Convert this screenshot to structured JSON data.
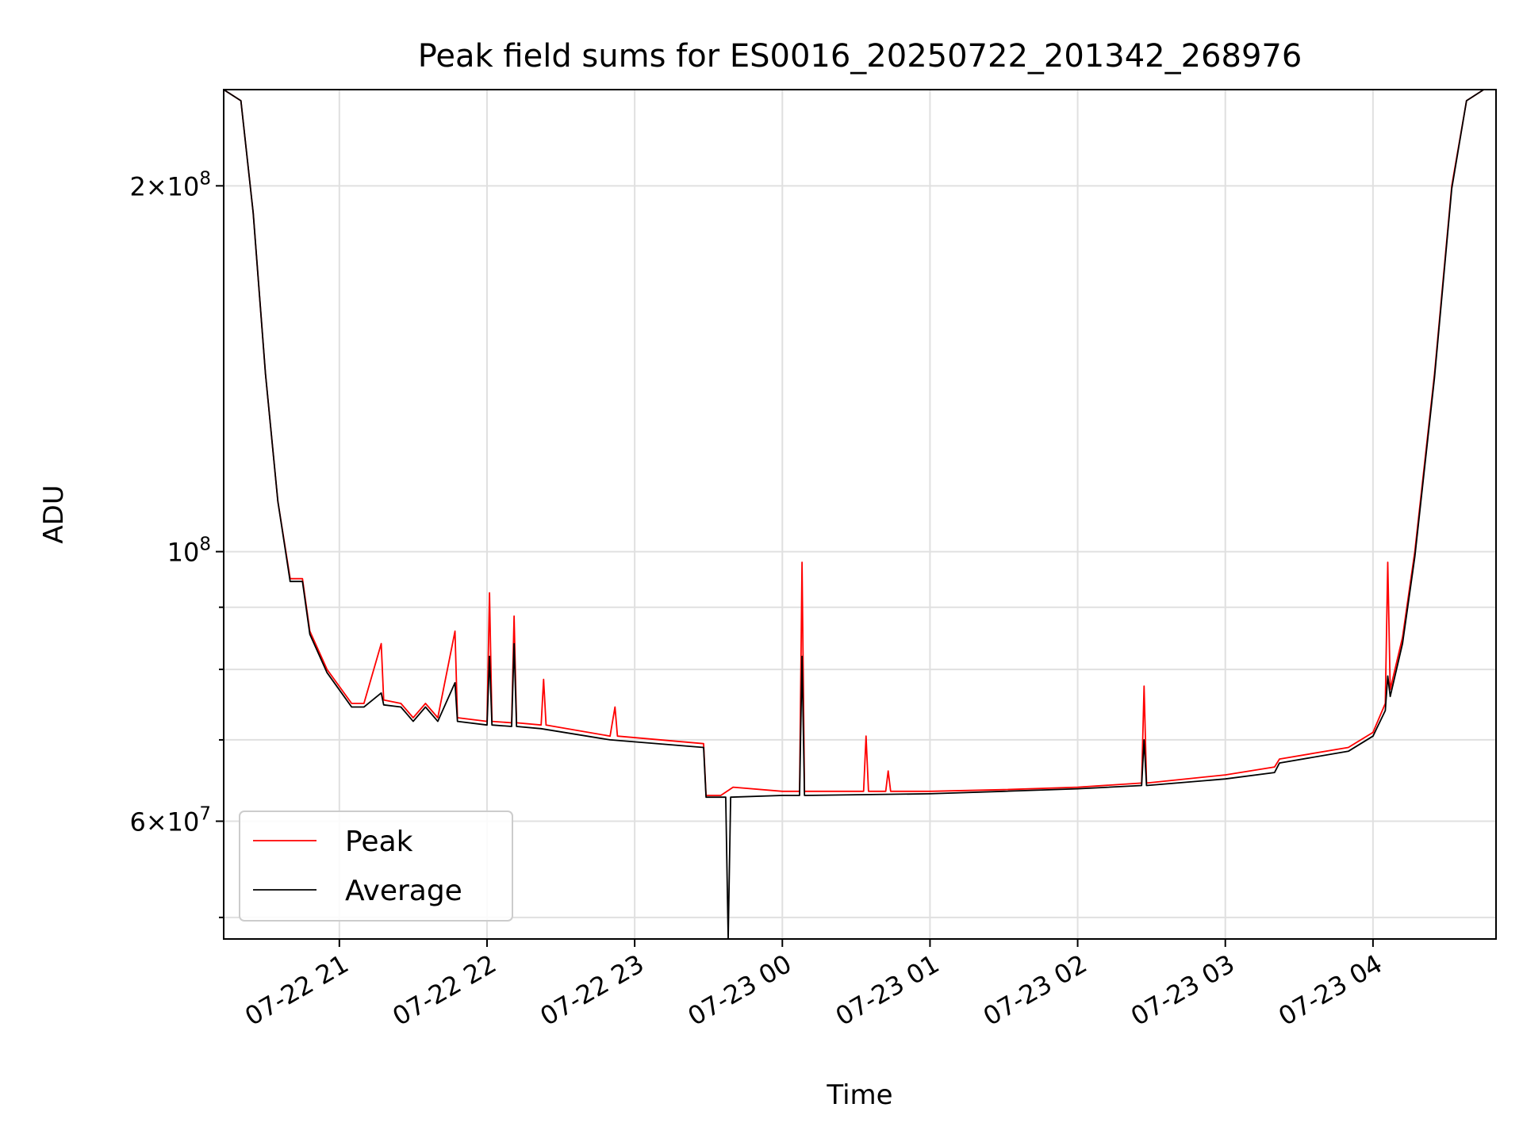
{
  "chart_data": {
    "type": "line",
    "title": "Peak field sums for ES0016_20250722_201342_268976",
    "xlabel": "Time",
    "ylabel": "ADU",
    "yscale": "log",
    "ylim": [
      48000000,
      240000000
    ],
    "xlim": [
      "2025-07-22 20:13",
      "2025-07-23 04:50"
    ],
    "grid": true,
    "legend_position": "lower-left",
    "x_ticks": [
      "2025-07-22 21:00",
      "2025-07-22 22:00",
      "2025-07-22 23:00",
      "2025-07-23 00:00",
      "2025-07-23 01:00",
      "2025-07-23 02:00",
      "2025-07-23 03:00",
      "2025-07-23 04:00"
    ],
    "x_tick_labels": [
      "07-22 21",
      "07-22 22",
      "07-22 23",
      "07-23 00",
      "07-23 01",
      "07-23 02",
      "07-23 03",
      "07-23 04"
    ],
    "y_major_ticks": [
      {
        "value": 60000000,
        "mantissa": "6",
        "exponent": "7"
      },
      {
        "value": 100000000,
        "mantissa": "",
        "exponent": "8"
      },
      {
        "value": 200000000,
        "mantissa": "2",
        "exponent": "8"
      }
    ],
    "y_minor_ticks": [
      50000000,
      70000000,
      80000000,
      90000000
    ],
    "series": [
      {
        "name": "Peak",
        "color": "#ff0000",
        "points": [
          [
            "2025-07-22 20:13",
            240000000
          ],
          [
            "2025-07-22 20:20",
            235000000
          ],
          [
            "2025-07-22 20:25",
            190000000
          ],
          [
            "2025-07-22 20:30",
            140000000
          ],
          [
            "2025-07-22 20:35",
            110000000
          ],
          [
            "2025-07-22 20:40",
            95000000
          ],
          [
            "2025-07-22 20:45",
            95000000
          ],
          [
            "2025-07-22 20:48",
            86000000
          ],
          [
            "2025-07-22 20:55",
            80000000
          ],
          [
            "2025-07-22 21:05",
            75000000
          ],
          [
            "2025-07-22 21:10",
            75000000
          ],
          [
            "2025-07-22 21:17",
            84000000
          ],
          [
            "2025-07-22 21:18",
            75500000
          ],
          [
            "2025-07-22 21:25",
            75000000
          ],
          [
            "2025-07-22 21:30",
            73000000
          ],
          [
            "2025-07-22 21:35",
            75000000
          ],
          [
            "2025-07-22 21:40",
            73000000
          ],
          [
            "2025-07-22 21:47",
            86000000
          ],
          [
            "2025-07-22 21:48",
            73000000
          ],
          [
            "2025-07-22 22:00",
            72500000
          ],
          [
            "2025-07-22 22:01",
            92500000
          ],
          [
            "2025-07-22 22:02",
            72500000
          ],
          [
            "2025-07-22 22:10",
            72300000
          ],
          [
            "2025-07-22 22:11",
            88500000
          ],
          [
            "2025-07-22 22:12",
            72300000
          ],
          [
            "2025-07-22 22:22",
            72000000
          ],
          [
            "2025-07-22 22:23",
            78500000
          ],
          [
            "2025-07-22 22:24",
            72000000
          ],
          [
            "2025-07-22 22:50",
            70500000
          ],
          [
            "2025-07-22 22:52",
            74500000
          ],
          [
            "2025-07-22 22:53",
            70500000
          ],
          [
            "2025-07-22 23:28",
            69500000
          ],
          [
            "2025-07-22 23:29",
            63000000
          ],
          [
            "2025-07-22 23:35",
            63000000
          ],
          [
            "2025-07-22 23:40",
            64000000
          ],
          [
            "2025-07-23 00:00",
            63500000
          ],
          [
            "2025-07-23 00:07",
            63500000
          ],
          [
            "2025-07-23 00:08",
            98000000
          ],
          [
            "2025-07-23 00:09",
            63500000
          ],
          [
            "2025-07-23 00:33",
            63500000
          ],
          [
            "2025-07-23 00:34",
            70500000
          ],
          [
            "2025-07-23 00:35",
            63500000
          ],
          [
            "2025-07-23 00:42",
            63500000
          ],
          [
            "2025-07-23 00:43",
            66000000
          ],
          [
            "2025-07-23 00:44",
            63500000
          ],
          [
            "2025-07-23 01:00",
            63500000
          ],
          [
            "2025-07-23 01:30",
            63700000
          ],
          [
            "2025-07-23 02:00",
            64000000
          ],
          [
            "2025-07-23 02:26",
            64500000
          ],
          [
            "2025-07-23 02:27",
            77500000
          ],
          [
            "2025-07-23 02:28",
            64500000
          ],
          [
            "2025-07-23 03:00",
            65500000
          ],
          [
            "2025-07-23 03:20",
            66500000
          ],
          [
            "2025-07-23 03:22",
            67500000
          ],
          [
            "2025-07-23 03:50",
            69000000
          ],
          [
            "2025-07-23 04:00",
            71000000
          ],
          [
            "2025-07-23 04:05",
            75000000
          ],
          [
            "2025-07-23 04:06",
            98000000
          ],
          [
            "2025-07-23 04:07",
            77000000
          ],
          [
            "2025-07-23 04:12",
            85000000
          ],
          [
            "2025-07-23 04:17",
            100000000
          ],
          [
            "2025-07-23 04:25",
            140000000
          ],
          [
            "2025-07-23 04:32",
            200000000
          ],
          [
            "2025-07-23 04:38",
            235000000
          ],
          [
            "2025-07-23 04:45",
            240000000
          ],
          [
            "2025-07-23 04:50",
            240000000
          ]
        ]
      },
      {
        "name": "Average",
        "color": "#000000",
        "points": [
          [
            "2025-07-22 20:13",
            240000000
          ],
          [
            "2025-07-22 20:20",
            235000000
          ],
          [
            "2025-07-22 20:25",
            190000000
          ],
          [
            "2025-07-22 20:30",
            140000000
          ],
          [
            "2025-07-22 20:35",
            110000000
          ],
          [
            "2025-07-22 20:40",
            94500000
          ],
          [
            "2025-07-22 20:45",
            94500000
          ],
          [
            "2025-07-22 20:48",
            85500000
          ],
          [
            "2025-07-22 20:55",
            79500000
          ],
          [
            "2025-07-22 21:05",
            74500000
          ],
          [
            "2025-07-22 21:10",
            74500000
          ],
          [
            "2025-07-22 21:17",
            76500000
          ],
          [
            "2025-07-22 21:18",
            74800000
          ],
          [
            "2025-07-22 21:25",
            74500000
          ],
          [
            "2025-07-22 21:30",
            72500000
          ],
          [
            "2025-07-22 21:35",
            74500000
          ],
          [
            "2025-07-22 21:40",
            72500000
          ],
          [
            "2025-07-22 21:47",
            78000000
          ],
          [
            "2025-07-22 21:48",
            72500000
          ],
          [
            "2025-07-22 22:00",
            72000000
          ],
          [
            "2025-07-22 22:01",
            82000000
          ],
          [
            "2025-07-22 22:02",
            72000000
          ],
          [
            "2025-07-22 22:10",
            71800000
          ],
          [
            "2025-07-22 22:11",
            84000000
          ],
          [
            "2025-07-22 22:12",
            71800000
          ],
          [
            "2025-07-22 22:22",
            71500000
          ],
          [
            "2025-07-22 22:50",
            70000000
          ],
          [
            "2025-07-22 23:28",
            69000000
          ],
          [
            "2025-07-22 23:29",
            62800000
          ],
          [
            "2025-07-22 23:37",
            62800000
          ],
          [
            "2025-07-22 23:38",
            48000000
          ],
          [
            "2025-07-22 23:39",
            62800000
          ],
          [
            "2025-07-23 00:00",
            63000000
          ],
          [
            "2025-07-23 00:07",
            63000000
          ],
          [
            "2025-07-23 00:08",
            82000000
          ],
          [
            "2025-07-23 00:09",
            63000000
          ],
          [
            "2025-07-23 01:00",
            63200000
          ],
          [
            "2025-07-23 01:30",
            63500000
          ],
          [
            "2025-07-23 02:00",
            63800000
          ],
          [
            "2025-07-23 02:26",
            64200000
          ],
          [
            "2025-07-23 02:27",
            70000000
          ],
          [
            "2025-07-23 02:28",
            64200000
          ],
          [
            "2025-07-23 03:00",
            65000000
          ],
          [
            "2025-07-23 03:20",
            65800000
          ],
          [
            "2025-07-23 03:22",
            67000000
          ],
          [
            "2025-07-23 03:50",
            68500000
          ],
          [
            "2025-07-23 04:00",
            70500000
          ],
          [
            "2025-07-23 04:05",
            74000000
          ],
          [
            "2025-07-23 04:06",
            79000000
          ],
          [
            "2025-07-23 04:07",
            76000000
          ],
          [
            "2025-07-23 04:12",
            84000000
          ],
          [
            "2025-07-23 04:17",
            99000000
          ],
          [
            "2025-07-23 04:25",
            139000000
          ],
          [
            "2025-07-23 04:32",
            199000000
          ],
          [
            "2025-07-23 04:38",
            235000000
          ],
          [
            "2025-07-23 04:45",
            240000000
          ],
          [
            "2025-07-23 04:50",
            240000000
          ]
        ]
      }
    ]
  }
}
